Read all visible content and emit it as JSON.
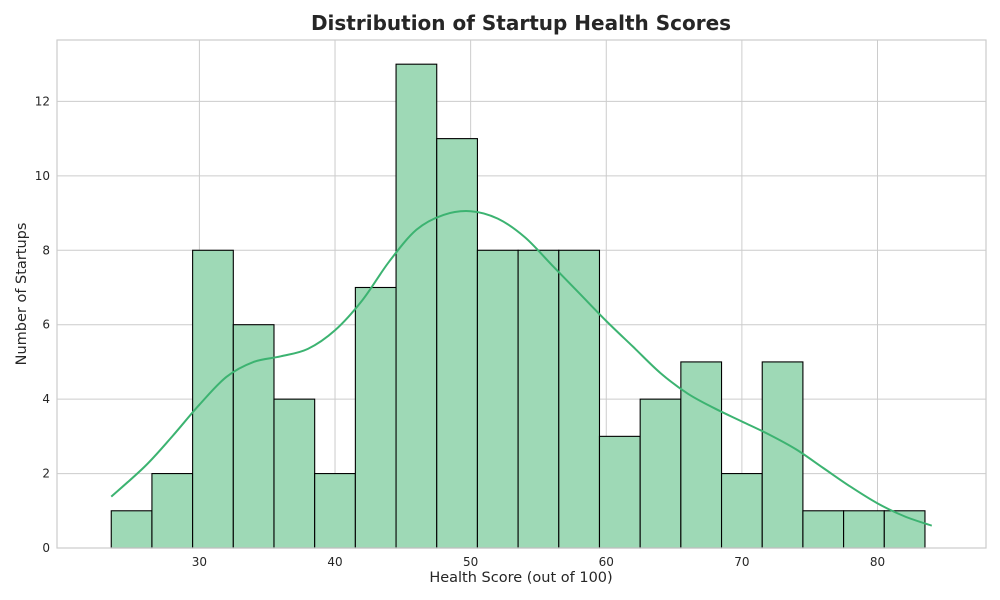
{
  "chart_data": {
    "type": "bar",
    "subtype": "histogram",
    "title": "Distribution of Startup Health Scores",
    "xlabel": "Health Score (out of 100)",
    "ylabel": "Number of Startups",
    "xlim": [
      19.5,
      88.0
    ],
    "ylim": [
      0,
      13.65
    ],
    "x_ticks": [
      30,
      40,
      50,
      60,
      70,
      80
    ],
    "y_ticks": [
      0,
      2,
      4,
      6,
      8,
      10,
      12
    ],
    "bin_edges": [
      23.5,
      26.5,
      29.5,
      32.5,
      35.5,
      38.5,
      41.5,
      44.5,
      47.5,
      50.5,
      53.5,
      56.5,
      59.5,
      62.5,
      65.5,
      68.5,
      71.5,
      74.5,
      77.5,
      80.5,
      83.5
    ],
    "counts": [
      1,
      2,
      8,
      6,
      4,
      2,
      7,
      13,
      11,
      8,
      8,
      8,
      3,
      4,
      5,
      2,
      5,
      1,
      1,
      1
    ],
    "kde": {
      "x": [
        23.5,
        26,
        28,
        30,
        32,
        34,
        36,
        38,
        40,
        42,
        44,
        46,
        48,
        50,
        52,
        54,
        56,
        58,
        60,
        62,
        64,
        66,
        68,
        70,
        72,
        74,
        76,
        78,
        80,
        82,
        84
      ],
      "y": [
        1.38,
        2.2,
        3.0,
        3.85,
        4.6,
        5.0,
        5.15,
        5.35,
        5.85,
        6.65,
        7.7,
        8.55,
        8.95,
        9.05,
        8.85,
        8.35,
        7.6,
        6.85,
        6.1,
        5.4,
        4.7,
        4.15,
        3.75,
        3.4,
        3.05,
        2.65,
        2.15,
        1.65,
        1.2,
        0.85,
        0.6
      ]
    },
    "grid": true,
    "legend": "none",
    "colors": {
      "bar_fill": "#9ed9b6",
      "bar_edge": "#000000",
      "kde_line": "#3cb371"
    }
  }
}
